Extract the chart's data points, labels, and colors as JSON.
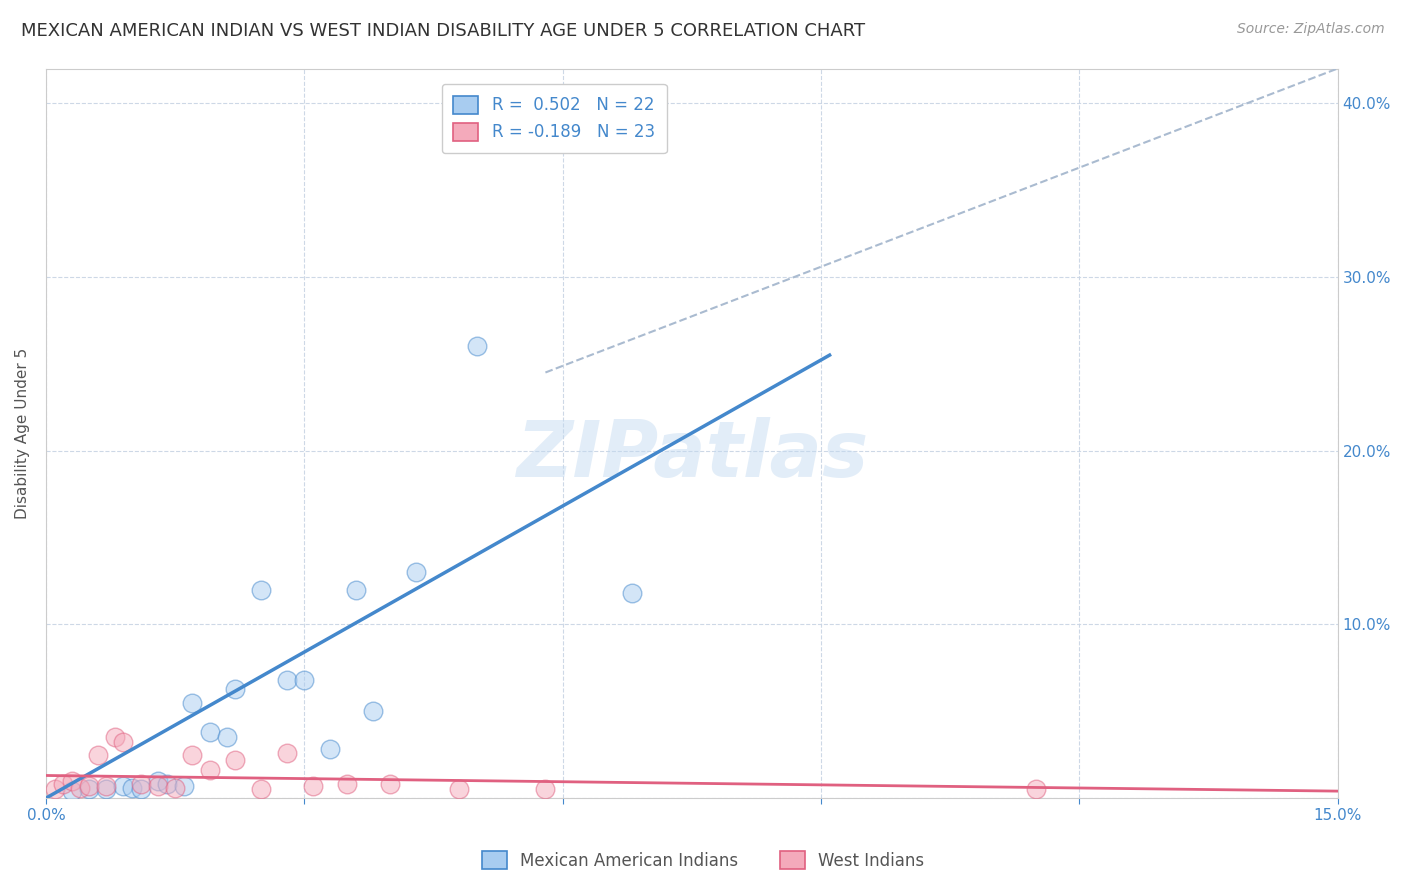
{
  "title": "MEXICAN AMERICAN INDIAN VS WEST INDIAN DISABILITY AGE UNDER 5 CORRELATION CHART",
  "source": "Source: ZipAtlas.com",
  "ylabel": "Disability Age Under 5",
  "xlim": [
    0.0,
    0.15
  ],
  "ylim": [
    0.0,
    0.42
  ],
  "xticks": [
    0.0,
    0.03,
    0.06,
    0.09,
    0.12,
    0.15
  ],
  "xtick_labels": [
    "0.0%",
    "",
    "",
    "",
    "",
    "15.0%"
  ],
  "ytick_labels_right": [
    "",
    "10.0%",
    "20.0%",
    "30.0%",
    "40.0%"
  ],
  "yticks_right": [
    0.0,
    0.1,
    0.2,
    0.3,
    0.4
  ],
  "watermark": "ZIPatlas",
  "blue_color": "#A8CCF0",
  "pink_color": "#F4AABB",
  "blue_line_color": "#4488CC",
  "pink_line_color": "#E06080",
  "dashed_line_color": "#AABBD0",
  "legend_r_blue": "R =  0.502",
  "legend_n_blue": "N = 22",
  "legend_r_pink": "R = -0.189",
  "legend_n_pink": "N = 23",
  "legend_label_blue": "Mexican American Indians",
  "legend_label_pink": "West Indians",
  "blue_points_x": [
    0.003,
    0.005,
    0.007,
    0.009,
    0.01,
    0.011,
    0.013,
    0.014,
    0.016,
    0.017,
    0.019,
    0.021,
    0.022,
    0.025,
    0.028,
    0.03,
    0.033,
    0.036,
    0.038,
    0.043,
    0.05,
    0.068
  ],
  "blue_points_y": [
    0.004,
    0.005,
    0.005,
    0.007,
    0.006,
    0.005,
    0.01,
    0.008,
    0.007,
    0.055,
    0.038,
    0.035,
    0.063,
    0.12,
    0.068,
    0.068,
    0.028,
    0.12,
    0.05,
    0.13,
    0.26,
    0.118
  ],
  "pink_points_x": [
    0.001,
    0.002,
    0.003,
    0.004,
    0.005,
    0.006,
    0.007,
    0.008,
    0.009,
    0.011,
    0.013,
    0.015,
    0.017,
    0.019,
    0.022,
    0.025,
    0.028,
    0.031,
    0.035,
    0.04,
    0.048,
    0.058,
    0.115
  ],
  "pink_points_y": [
    0.005,
    0.008,
    0.01,
    0.006,
    0.007,
    0.025,
    0.007,
    0.035,
    0.032,
    0.008,
    0.007,
    0.006,
    0.025,
    0.016,
    0.022,
    0.005,
    0.026,
    0.007,
    0.008,
    0.008,
    0.005,
    0.005,
    0.005
  ],
  "blue_trendline_x": [
    0.0,
    0.091
  ],
  "blue_trendline_y": [
    0.0,
    0.255
  ],
  "pink_trendline_x": [
    0.0,
    0.15
  ],
  "pink_trendline_y": [
    0.013,
    0.004
  ],
  "dashed_trendline_x": [
    0.058,
    0.15
  ],
  "dashed_trendline_y": [
    0.245,
    0.42
  ],
  "marker_size": 180,
  "marker_alpha": 0.5,
  "background_color": "#FFFFFF",
  "plot_background_color": "#FFFFFF",
  "grid_color": "#C8D4E4",
  "title_fontsize": 13,
  "axis_label_fontsize": 11,
  "tick_fontsize": 11,
  "source_fontsize": 10
}
